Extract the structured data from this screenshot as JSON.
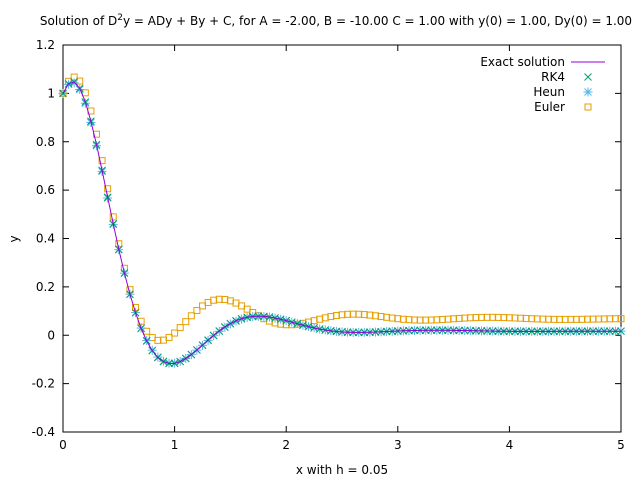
{
  "chart_data": {
    "type": "line",
    "title_prefix": "Solution of D",
    "title_sup": "2",
    "title_suffix": "y = ADy + By + C, for A = -2.00, B = -10.00 C = 1.00 with y(0) = 1.00, Dy(0) = 1.00",
    "xlabel": "x with h = 0.05",
    "ylabel": "y",
    "xlim": [
      0,
      5
    ],
    "ylim": [
      -0.4,
      1.2
    ],
    "xticks": [
      "0",
      "1",
      "2",
      "3",
      "4",
      "5"
    ],
    "yticks": [
      "-0.4",
      "-0.2",
      "0",
      "0.2",
      "0.4",
      "0.6",
      "0.8",
      "1",
      "1.2"
    ],
    "grid": false,
    "legend_position": "top-right",
    "h": 0.05,
    "series": [
      {
        "name": "Exact solution",
        "style": "line",
        "color": "#9400d3",
        "y": [
          1.0,
          1.0397,
          1.0472,
          1.0208,
          0.9647,
          0.885,
          0.7885,
          0.6818,
          0.5708,
          0.4607,
          0.3552,
          0.2574,
          0.1695,
          0.0929,
          0.0283,
          -0.0238,
          -0.0638,
          -0.092,
          -0.1092,
          -0.1168,
          -0.1162,
          -0.1087,
          -0.0961,
          -0.0797,
          -0.0608,
          -0.0406,
          -0.0202,
          -0.0004,
          0.0179,
          0.0344,
          0.0484,
          0.0598,
          0.0684,
          0.0744,
          0.0778,
          0.0789,
          0.0779,
          0.0753,
          0.0712,
          0.0661,
          0.0603,
          0.054,
          0.0477,
          0.0414,
          0.0356,
          0.0302,
          0.0255,
          0.0215,
          0.0182,
          0.0156,
          0.0137,
          0.0125,
          0.0118,
          0.0117,
          0.012,
          0.0126,
          0.0134,
          0.0143,
          0.0154,
          0.0164,
          0.0175,
          0.0184,
          0.0192,
          0.0199,
          0.0204,
          0.0207,
          0.0209,
          0.0209,
          0.0208,
          0.0205,
          0.0202,
          0.0198,
          0.0194,
          0.0189,
          0.0185,
          0.018,
          0.0176,
          0.0172,
          0.0168,
          0.0165,
          0.0163,
          0.0161,
          0.016,
          0.0159,
          0.0159,
          0.016,
          0.016,
          0.0161,
          0.0162,
          0.0163,
          0.0164,
          0.0165,
          0.0166,
          0.0167,
          0.0167,
          0.0168,
          0.0168,
          0.0168,
          0.0168,
          0.0168,
          0.0168
        ]
      },
      {
        "name": "RK4",
        "style": "x",
        "color": "#009e73",
        "y": [
          1.0,
          1.0396,
          1.0471,
          1.0207,
          0.9646,
          0.8849,
          0.7884,
          0.6817,
          0.5707,
          0.4606,
          0.3551,
          0.2573,
          0.1694,
          0.0928,
          0.0282,
          -0.0238,
          -0.0638,
          -0.092,
          -0.1092,
          -0.1168,
          -0.1162,
          -0.1087,
          -0.0961,
          -0.0797,
          -0.0608,
          -0.0406,
          -0.0202,
          -0.0004,
          0.0179,
          0.0344,
          0.0484,
          0.0598,
          0.0684,
          0.0744,
          0.0778,
          0.0789,
          0.0779,
          0.0753,
          0.0712,
          0.0661,
          0.0603,
          0.054,
          0.0477,
          0.0414,
          0.0356,
          0.0302,
          0.0255,
          0.0215,
          0.0182,
          0.0156,
          0.0137,
          0.0125,
          0.0118,
          0.0117,
          0.012,
          0.0126,
          0.0134,
          0.0143,
          0.0154,
          0.0164,
          0.0175,
          0.0184,
          0.0192,
          0.0199,
          0.0204,
          0.0207,
          0.0209,
          0.0209,
          0.0208,
          0.0205,
          0.0202,
          0.0198,
          0.0194,
          0.0189,
          0.0185,
          0.018,
          0.0176,
          0.0172,
          0.0168,
          0.0165,
          0.0163,
          0.0161,
          0.016,
          0.0159,
          0.0159,
          0.016,
          0.016,
          0.0161,
          0.0162,
          0.0163,
          0.0164,
          0.0165,
          0.0166,
          0.0167,
          0.0167,
          0.0168,
          0.0168,
          0.0168,
          0.0168,
          0.0168,
          0.0168
        ]
      },
      {
        "name": "Heun",
        "style": "asterisk",
        "color": "#56b4e9",
        "y": [
          1.0,
          1.0375,
          1.0434,
          1.016,
          0.9594,
          0.8797,
          0.7836,
          0.6776,
          0.5674,
          0.4583,
          0.3537,
          0.2568,
          0.1697,
          0.0938,
          0.0297,
          -0.022,
          -0.0618,
          -0.0901,
          -0.1075,
          -0.1155,
          -0.1153,
          -0.1083,
          -0.0961,
          -0.0801,
          -0.0616,
          -0.0417,
          -0.0216,
          -0.002,
          0.0162,
          0.0327,
          0.0468,
          0.0583,
          0.0671,
          0.0732,
          0.0768,
          0.0781,
          0.0774,
          0.075,
          0.0711,
          0.0662,
          0.0605,
          0.0544,
          0.0481,
          0.0419,
          0.0361,
          0.0308,
          0.0261,
          0.022,
          0.0187,
          0.016,
          0.0141,
          0.0128,
          0.012,
          0.0118,
          0.012,
          0.0125,
          0.0133,
          0.0142,
          0.0152,
          0.0162,
          0.0172,
          0.0182,
          0.019,
          0.0197,
          0.0202,
          0.0206,
          0.0208,
          0.0208,
          0.0208,
          0.0206,
          0.0203,
          0.0199,
          0.0195,
          0.0191,
          0.0186,
          0.0182,
          0.0178,
          0.0174,
          0.017,
          0.0167,
          0.0164,
          0.0162,
          0.0161,
          0.016,
          0.016,
          0.016,
          0.016,
          0.0161,
          0.0162,
          0.0163,
          0.0164,
          0.0165,
          0.0166,
          0.0166,
          0.0167,
          0.0168,
          0.0168,
          0.0168,
          0.0168,
          0.0168,
          0.0168
        ]
      },
      {
        "name": "Euler",
        "style": "square",
        "color": "#e69f00",
        "y": [
          1.0,
          1.05,
          1.0675,
          1.0509,
          1.0024,
          0.9272,
          0.8313,
          0.7219,
          0.6057,
          0.4894,
          0.3784,
          0.2769,
          0.1884,
          0.1151,
          0.0579,
          0.0164,
          -0.0096,
          -0.0212,
          -0.0202,
          -0.0091,
          0.0091,
          0.0317,
          0.0562,
          0.0804,
          0.1025,
          0.1212,
          0.1356,
          0.1449,
          0.1489,
          0.1478,
          0.1422,
          0.1331,
          0.1213,
          0.1079,
          0.0941,
          0.0807,
          0.0686,
          0.0585,
          0.0509,
          0.0458,
          0.0434,
          0.0434,
          0.0456,
          0.0494,
          0.0545,
          0.0603,
          0.0663,
          0.0721,
          0.0772,
          0.0815,
          0.0846,
          0.0866,
          0.0873,
          0.0869,
          0.0855,
          0.0833,
          0.0805,
          0.0774,
          0.0742,
          0.0712,
          0.0684,
          0.0661,
          0.0643,
          0.0631,
          0.0625,
          0.0625,
          0.063,
          0.0639,
          0.0651,
          0.0665,
          0.0681,
          0.0696,
          0.071,
          0.0722,
          0.0731,
          0.0737,
          0.074,
          0.074,
          0.0737,
          0.0731,
          0.0723,
          0.0714,
          0.0704,
          0.0694,
          0.0684,
          0.0675,
          0.0668,
          0.0662,
          0.0657,
          0.0655,
          0.0654,
          0.0654,
          0.0656,
          0.0659,
          0.0663,
          0.0667,
          0.0671,
          0.0675,
          0.0679,
          0.0682,
          0.0684
        ]
      }
    ]
  }
}
